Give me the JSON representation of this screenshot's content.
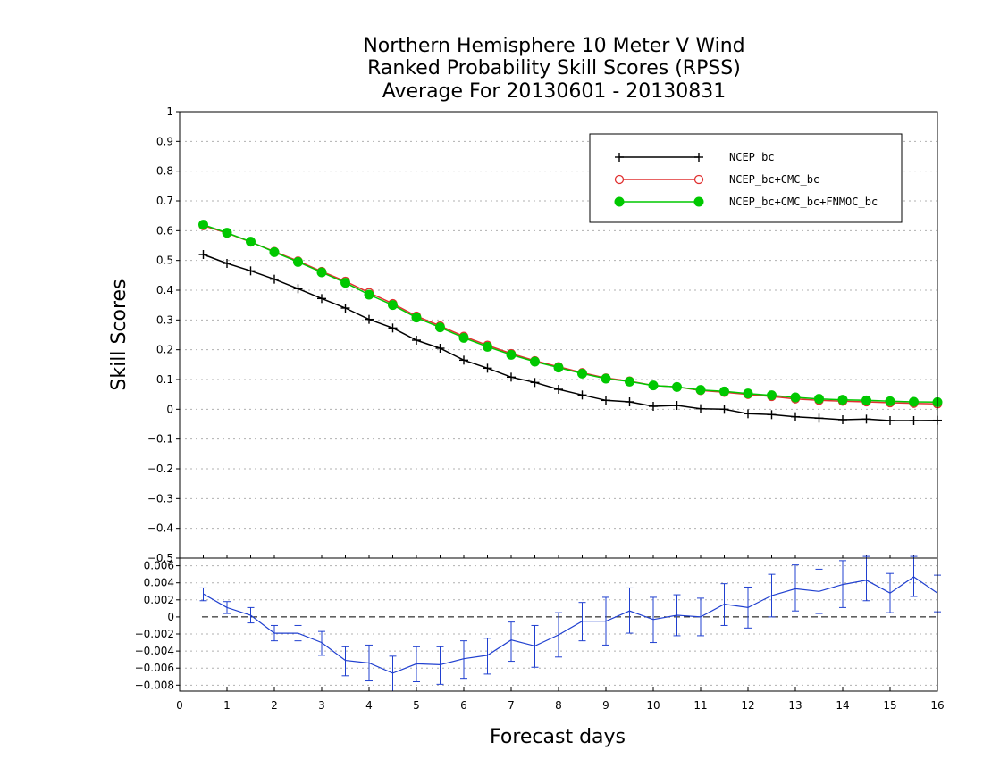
{
  "chart_data": [
    {
      "type": "line",
      "title_lines": [
        "Northern Hemisphere 10 Meter V Wind",
        "Ranked Probability Skill Scores (RPSS)",
        " Average For 20130601 - 20130831"
      ],
      "xlabel": "",
      "ylabel": "Skill Scores",
      "xlim": [
        0,
        16
      ],
      "ylim": [
        -0.5,
        1
      ],
      "yticks": [
        1,
        0.9,
        0.8,
        0.7,
        0.6,
        0.5,
        0.4,
        0.3,
        0.2,
        0.1,
        0,
        -0.1,
        -0.2,
        -0.3,
        -0.4,
        -0.5
      ],
      "yticklabels": [
        "1",
        "0.9",
        "0.8",
        "0.7",
        "0.6",
        "0.5",
        "0.4",
        "0.3",
        "0.2",
        "0.1",
        "0",
        "−0.1",
        "−0.2",
        "−0.3",
        "−0.4",
        "−0.5"
      ],
      "grid": true,
      "legend": "top-right",
      "x": [
        0.5,
        1.0,
        1.5,
        2.0,
        2.5,
        3.0,
        3.5,
        4.0,
        4.5,
        5.0,
        5.5,
        6.0,
        6.5,
        7.0,
        7.5,
        8.0,
        8.5,
        9.0,
        9.5,
        10.0,
        10.5,
        11.0,
        11.5,
        12.0,
        12.5,
        13.0,
        13.5,
        14.0,
        14.5,
        15.0,
        15.5,
        16.0
      ],
      "series": [
        {
          "name": "NCEP_bc",
          "color": "#000000",
          "marker": "plus",
          "values": [
            0.52,
            0.49,
            0.465,
            0.437,
            0.405,
            0.372,
            0.34,
            0.302,
            0.273,
            0.232,
            0.205,
            0.165,
            0.138,
            0.108,
            0.09,
            0.067,
            0.048,
            0.03,
            0.025,
            0.01,
            0.013,
            0.002,
            0.0,
            -0.015,
            -0.018,
            -0.025,
            -0.03,
            -0.035,
            -0.033,
            -0.038,
            -0.038,
            -0.037
          ]
        },
        {
          "name": "NCEP_bc+CMC_bc",
          "color": "#e03030",
          "marker": "open-circle",
          "values": [
            0.617,
            0.592,
            0.562,
            0.53,
            0.498,
            0.463,
            0.43,
            0.392,
            0.355,
            0.313,
            0.28,
            0.245,
            0.215,
            0.187,
            0.163,
            0.143,
            0.123,
            0.105,
            0.095,
            0.08,
            0.075,
            0.063,
            0.057,
            0.05,
            0.043,
            0.035,
            0.03,
            0.027,
            0.025,
            0.022,
            0.02,
            0.018
          ]
        },
        {
          "name": "NCEP_bc+CMC_bc+FNMOC_bc",
          "color": "#00c800",
          "marker": "filled-circle",
          "values": [
            0.62,
            0.593,
            0.563,
            0.528,
            0.495,
            0.46,
            0.425,
            0.385,
            0.35,
            0.308,
            0.275,
            0.24,
            0.21,
            0.183,
            0.16,
            0.14,
            0.12,
            0.103,
            0.093,
            0.08,
            0.075,
            0.065,
            0.06,
            0.053,
            0.047,
            0.04,
            0.035,
            0.032,
            0.03,
            0.027,
            0.025,
            0.024
          ]
        }
      ]
    },
    {
      "type": "line",
      "xlabel": "Forecast days",
      "ylabel": "",
      "xlim": [
        0,
        16
      ],
      "ylim": [
        -0.0087,
        0.0069
      ],
      "yticks": [
        0.006,
        0.004,
        0.002,
        0,
        -0.002,
        -0.004,
        -0.006,
        -0.008
      ],
      "yticklabels": [
        "0.006",
        "0.004",
        "0.002",
        "0",
        "−0.002",
        "−0.004",
        "−0.006",
        "−0.008"
      ],
      "xticks": [
        0,
        1,
        2,
        3,
        4,
        5,
        6,
        7,
        8,
        9,
        10,
        11,
        12,
        13,
        14,
        15,
        16
      ],
      "xticklabels": [
        "0",
        "1",
        "2",
        "3",
        "4",
        "5",
        "6",
        "7",
        "8",
        "9",
        "10",
        "11",
        "12",
        "13",
        "14",
        "15",
        "16"
      ],
      "grid": true,
      "zero_line": true,
      "x": [
        0.5,
        1.0,
        1.5,
        2.0,
        2.5,
        3.0,
        3.5,
        4.0,
        4.5,
        5.0,
        5.5,
        6.0,
        6.5,
        7.0,
        7.5,
        8.0,
        8.5,
        9.0,
        9.5,
        10.0,
        10.5,
        11.0,
        11.5,
        12.0,
        12.5,
        13.0,
        13.5,
        14.0,
        14.5,
        15.0,
        15.5,
        16.0
      ],
      "series": [
        {
          "color": "#2040d0",
          "values": [
            0.0027,
            0.0011,
            0.0002,
            -0.0019,
            -0.0019,
            -0.003,
            -0.0051,
            -0.0054,
            -0.0066,
            -0.0055,
            -0.0056,
            -0.0049,
            -0.0045,
            -0.0027,
            -0.0034,
            -0.0021,
            -0.0005,
            -0.0005,
            0.0007,
            -0.0003,
            0.0002,
            0.0,
            0.0015,
            0.0011,
            0.0025,
            0.0033,
            0.003,
            0.0038,
            0.0043,
            0.0028,
            0.0047,
            0.0028
          ],
          "error_low": [
            0.0019,
            0.0004,
            -0.0007,
            -0.0028,
            -0.0028,
            -0.0045,
            -0.0069,
            -0.0075,
            -0.0087,
            -0.0076,
            -0.0079,
            -0.0072,
            -0.0067,
            -0.0052,
            -0.0059,
            -0.0047,
            -0.0028,
            -0.0033,
            -0.0019,
            -0.003,
            -0.0022,
            -0.0022,
            -0.001,
            -0.0013,
            0.0,
            0.0007,
            0.0004,
            0.0011,
            0.0019,
            0.0005,
            0.0024,
            0.0006
          ],
          "error_high": [
            0.0034,
            0.0018,
            0.0011,
            -0.001,
            -0.001,
            -0.0017,
            -0.0035,
            -0.0033,
            -0.0046,
            -0.0035,
            -0.0035,
            -0.0028,
            -0.0025,
            -0.0006,
            -0.001,
            0.0005,
            0.0017,
            0.0023,
            0.0034,
            0.0023,
            0.0026,
            0.0022,
            0.0039,
            0.0035,
            0.005,
            0.0061,
            0.0056,
            0.0066,
            0.0071,
            0.0051,
            0.0071,
            0.0049
          ]
        }
      ]
    }
  ]
}
